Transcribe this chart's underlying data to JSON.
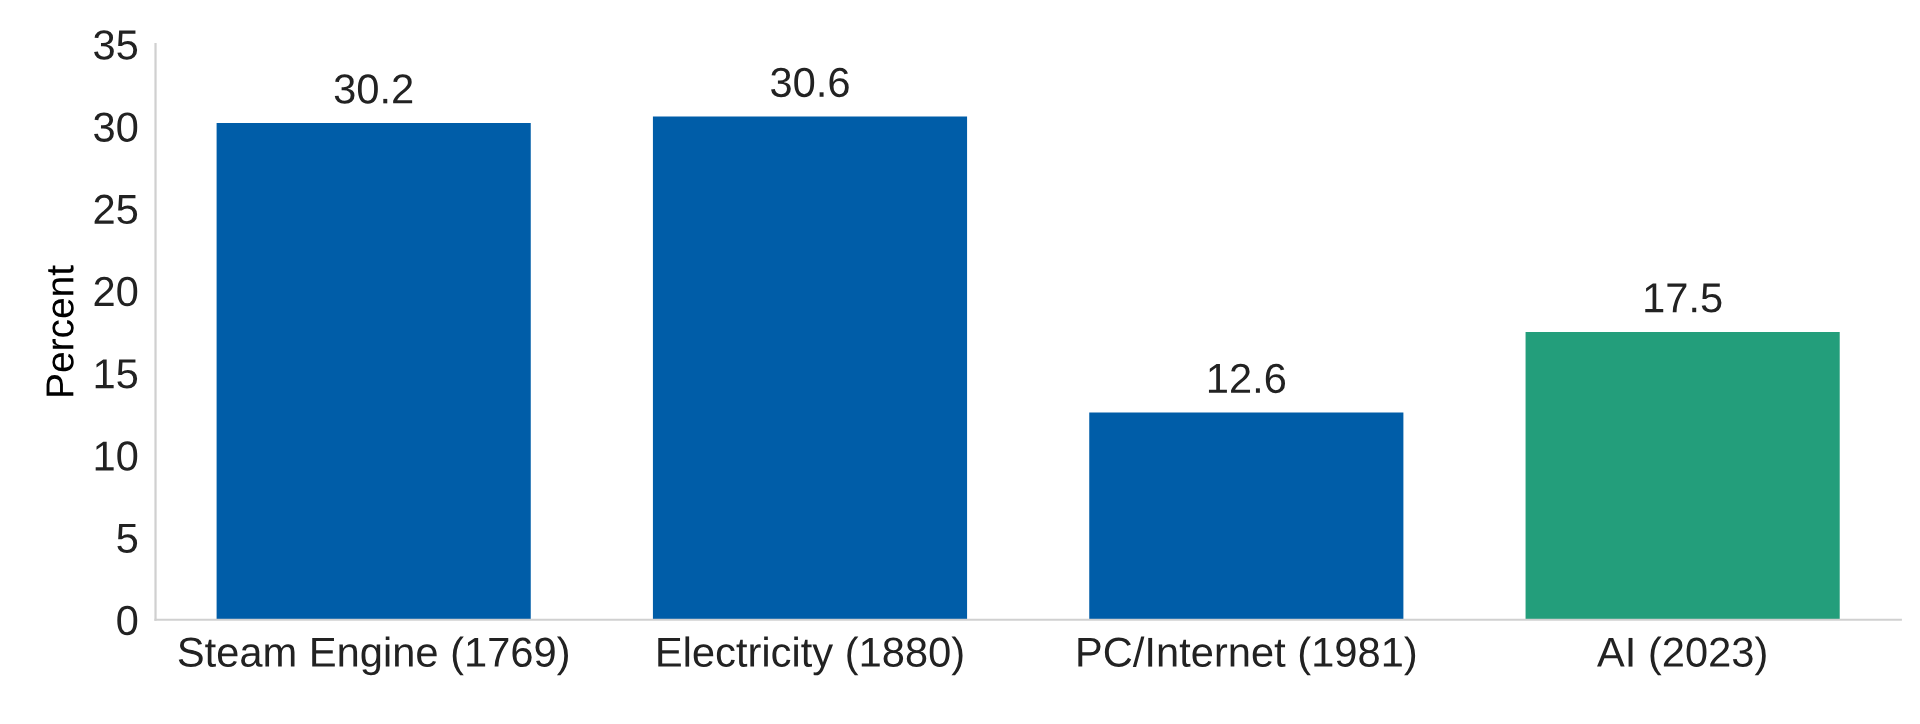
{
  "chart_data": {
    "type": "bar",
    "ylabel": "Percent",
    "categories": [
      "Steam Engine (1769)",
      "Electricity (1880)",
      "PC/Internet (1981)",
      "AI (2023)"
    ],
    "values": [
      30.2,
      30.6,
      12.6,
      17.5
    ],
    "colors": [
      "#005da8",
      "#005da8",
      "#005da8",
      "#239e7b"
    ],
    "ylim": [
      0,
      35
    ],
    "yticks": [
      0,
      5,
      10,
      15,
      20,
      25,
      30,
      35
    ],
    "data_labels": true,
    "grid": false,
    "legend": false
  }
}
